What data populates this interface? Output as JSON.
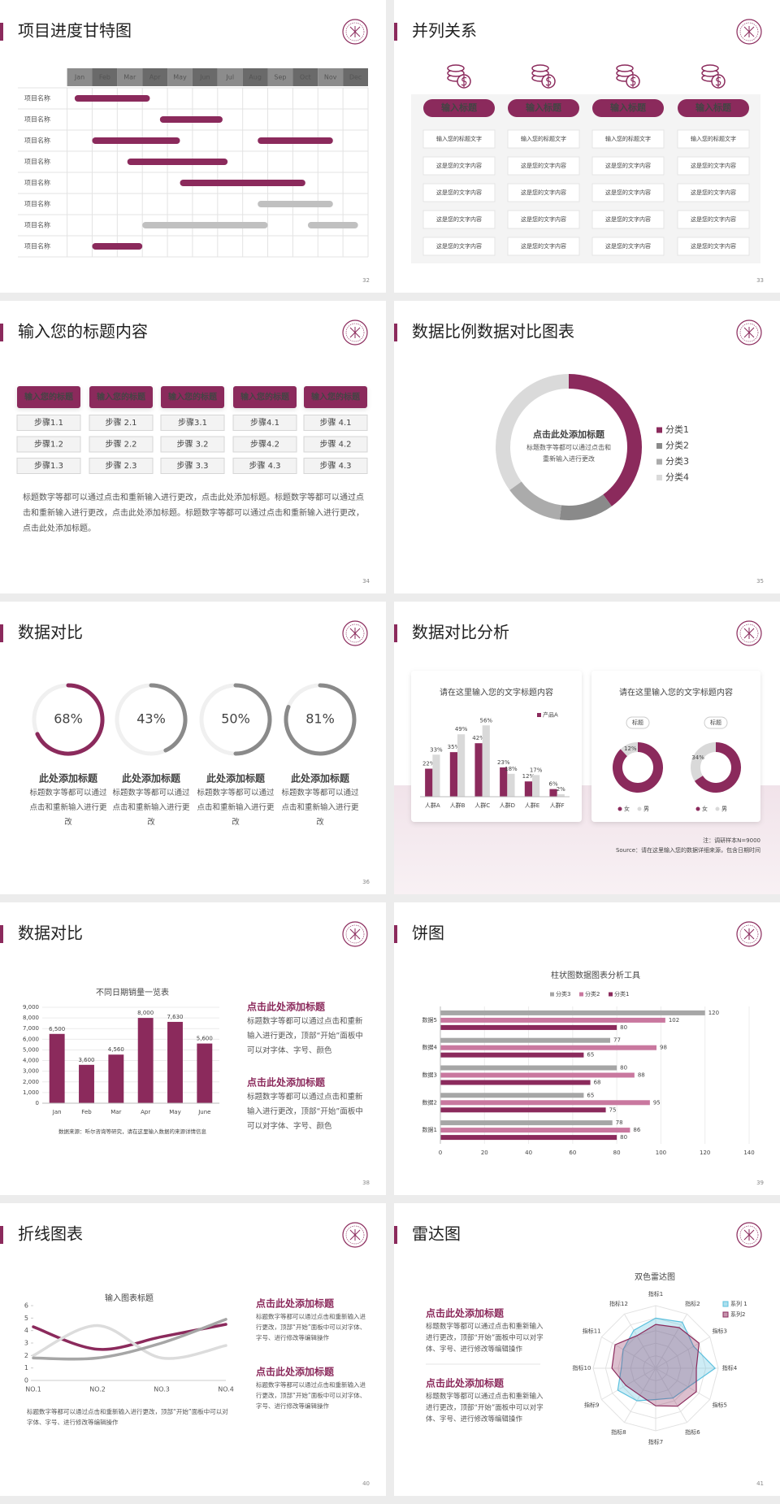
{
  "slides": [
    {
      "title": "项目进度甘特图",
      "page": "32",
      "gantt": {
        "months": [
          "Jan",
          "Feb",
          "Mar",
          "Apr",
          "May",
          "Jun",
          "Jul",
          "Aug",
          "Sep",
          "Oct",
          "Nov",
          "Dec"
        ],
        "xlim": [
          0,
          12
        ],
        "rows": [
          {
            "label": "项目名称",
            "color": "#8b2a5c",
            "bars": [
              [
                0.3,
                3.3
              ]
            ]
          },
          {
            "label": "项目名称",
            "color": "#8b2a5c",
            "bars": [
              [
                3.7,
                6.2
              ]
            ]
          },
          {
            "label": "项目名称",
            "color": "#8b2a5c",
            "bars": [
              [
                1,
                4.5
              ],
              [
                7.6,
                10.6
              ]
            ]
          },
          {
            "label": "项目名称",
            "color": "#8b2a5c",
            "bars": [
              [
                2.4,
                6.4
              ]
            ]
          },
          {
            "label": "项目名称",
            "color": "#8b2a5c",
            "bars": [
              [
                4.5,
                9.5
              ]
            ]
          },
          {
            "label": "项目名称",
            "color": "#c0c0c0",
            "bars": [
              [
                7.6,
                10.6
              ]
            ]
          },
          {
            "label": "项目名称",
            "color": "#c0c0c0",
            "bars": [
              [
                3,
                8
              ],
              [
                9.6,
                11.6
              ]
            ]
          },
          {
            "label": "项目名称",
            "color": "#8b2a5c",
            "bars": [
              [
                1,
                3
              ]
            ]
          }
        ]
      }
    },
    {
      "title": "并列关系",
      "page": "33",
      "columns": [
        {
          "header": "输入标题",
          "items": [
            "输入您的标题文字",
            "这是您的文字内容",
            "这是您的文字内容",
            "这是您的文字内容",
            "这是您的文字内容"
          ]
        },
        {
          "header": "输入标题",
          "items": [
            "输入您的标题文字",
            "这是您的文字内容",
            "这是您的文字内容",
            "这是您的文字内容",
            "这是您的文字内容"
          ]
        },
        {
          "header": "输入标题",
          "items": [
            "输入您的标题文字",
            "这是您的文字内容",
            "这是您的文字内容",
            "这是您的文字内容",
            "这是您的文字内容"
          ]
        },
        {
          "header": "输入标题",
          "items": [
            "输入您的标题文字",
            "这是您的文字内容",
            "这是您的文字内容",
            "这是您的文字内容",
            "这是您的文字内容"
          ]
        }
      ]
    },
    {
      "title": "输入您的标题内容",
      "page": "34",
      "columns": [
        {
          "header": "输入您的标题",
          "steps": [
            "步骤1.1",
            "步骤1.2",
            "步骤1.3"
          ]
        },
        {
          "header": "输入您的标题",
          "steps": [
            "步骤 2.1",
            "步骤 2.2",
            "步骤 2.3"
          ]
        },
        {
          "header": "输入您的标题",
          "steps": [
            "步骤3.1",
            "步骤 3.2",
            "步骤 3.3"
          ]
        },
        {
          "header": "输入您的标题",
          "steps": [
            "步骤4.1",
            "步骤4.2",
            "步骤 4.3"
          ]
        },
        {
          "header": "输入您的标题",
          "steps": [
            "步骤 4.1",
            "步骤 4.2",
            "步骤 4.3"
          ]
        }
      ],
      "text": "标题数字等都可以通过点击和重新输入进行更改，点击此处添加标题。标题数字等都可以通过点击和重新输入进行更改，点击此处添加标题。标题数字等都可以通过点击和重新输入进行更改，点击此处添加标题。"
    },
    {
      "title": "数据比例数据对比图表",
      "page": "35",
      "chart": {
        "type": "pie",
        "categories": [
          "分类1",
          "分类2",
          "分类3",
          "分类4"
        ],
        "values": [
          40,
          12,
          13,
          35
        ],
        "colors": [
          "#8b2a5c",
          "#8a8a8a",
          "#ababab",
          "#dadada"
        ],
        "center_title": "点击此处添加标题",
        "center_text": "标题数字等都可以通过点击和重新输入进行更改"
      }
    },
    {
      "title": "数据对比",
      "page": "36",
      "chart": {
        "type": "progress",
        "values": [
          68,
          43,
          50,
          81
        ],
        "value_labels": [
          "68%",
          "43%",
          "50%",
          "81%"
        ],
        "colors": [
          "#8b2a5c",
          "#8a8a8a",
          "#8a8a8a",
          "#8a8a8a"
        ]
      },
      "items": [
        {
          "title": "此处添加标题",
          "text": "标题数字等都可以通过点击和重新输入进行更改"
        },
        {
          "title": "此处添加标题",
          "text": "标题数字等都可以通过点击和重新输入进行更改"
        },
        {
          "title": "此处添加标题",
          "text": "标题数字等都可以通过点击和重新输入进行更改"
        },
        {
          "title": "此处添加标题",
          "text": "标题数字等都可以通过点击和重新输入进行更改"
        }
      ]
    },
    {
      "title": "数据对比分析",
      "page": "37",
      "panels": [
        {
          "title": "请在这里输入您的文字标题内容",
          "chart": {
            "type": "bar",
            "categories": [
              "人群A",
              "人群B",
              "人群C",
              "人群D",
              "人群E",
              "人群F"
            ],
            "ylim": [
              0,
              60
            ],
            "series": [
              {
                "name": "产品A",
                "color": "#8b2a5c",
                "values": [
                  22,
                  35,
                  42,
                  23,
                  12,
                  6
                ],
                "value_labels": [
                  "22%",
                  "35%",
                  "42%",
                  "23%",
                  "12%",
                  "6%"
                ]
              },
              {
                "color": "#d9d9d9",
                "values": [
                  33,
                  49,
                  56,
                  18,
                  17,
                  2
                ],
                "value_labels": [
                  "33%",
                  "49%",
                  "56%",
                  "18%",
                  "17%",
                  "2%"
                ]
              }
            ]
          }
        },
        {
          "title": "请在这里输入您的文字标题内容",
          "charts": [
            {
              "type": "pie",
              "label": "标题",
              "categories": [
                "女",
                "男"
              ],
              "values": [
                88,
                12
              ],
              "value_labels": [
                null,
                "12%"
              ],
              "colors": [
                "#8b2a5c",
                "#d9d9d9"
              ]
            },
            {
              "type": "pie",
              "label": "标题",
              "categories": [
                "女",
                "男"
              ],
              "values": [
                66,
                34
              ],
              "value_labels": [
                null,
                "34%"
              ],
              "colors": [
                "#8b2a5c",
                "#d9d9d9"
              ]
            }
          ]
        }
      ],
      "notes": [
        "注：调研样本N=9000",
        "Source：请在这里输入您的数据详细来源，包含日期时间"
      ]
    },
    {
      "title": "数据对比",
      "page": "38",
      "chart": {
        "type": "bar",
        "title": "不同日期销量一览表",
        "categories": [
          "Jan",
          "Feb",
          "Mar",
          "Apr",
          "May",
          "June"
        ],
        "values": [
          6500,
          3600,
          4560,
          8000,
          7630,
          5600
        ],
        "value_labels": [
          "6,500",
          "3,600",
          "4,560",
          "8,000",
          "7,630",
          "5,600"
        ],
        "color": "#8b2a5c",
        "ylim": [
          0,
          9000
        ],
        "yticks": [
          0,
          {
            "value": 1000,
            "label": "1,000"
          },
          {
            "value": 2000,
            "label": "2,000"
          },
          {
            "value": 3000,
            "label": "3,000"
          },
          {
            "value": 4000,
            "label": "4,000"
          },
          {
            "value": 5000,
            "label": "5,000"
          },
          {
            "value": 6000,
            "label": "6,000"
          },
          {
            "value": 7000,
            "label": "7,000"
          },
          {
            "value": 8000,
            "label": "8,000"
          },
          {
            "value": 9000,
            "label": "9,000"
          }
        ],
        "source": "数据来源：听尔咨询等研究，请在这里输入数据的来源详情信息"
      },
      "texts": [
        {
          "title": "点击此处添加标题",
          "text": "标题数字等都可以通过点击和重新输入进行更改，顶部“开始”面板中可以对字体、字号、颜色"
        },
        {
          "title": "点击此处添加标题",
          "text": "标题数字等都可以通过点击和重新输入进行更改，顶部“开始”面板中可以对字体、字号、颜色"
        }
      ]
    },
    {
      "title": "饼图",
      "page": "39",
      "chart": {
        "type": "hbar",
        "title": "柱状图数据图表分析工具",
        "categories": [
          "数据1",
          "数据2",
          "数据3",
          "数据4",
          "数据5"
        ],
        "series": [
          {
            "name": "分类1",
            "color": "#8b2a5c",
            "values": [
              80,
              75,
              68,
              65,
              80
            ]
          },
          {
            "name": "分类2",
            "color": "#c9789f",
            "values": [
              86,
              95,
              88,
              98,
              102
            ]
          },
          {
            "name": "分类3",
            "color": "#a6a6a6",
            "values": [
              78,
              65,
              80,
              77,
              120
            ]
          }
        ],
        "xlim": [
          0,
          140
        ],
        "xticks": [
          0,
          20,
          40,
          60,
          80,
          100,
          120,
          140
        ]
      }
    },
    {
      "title": "折线图表",
      "page": "40",
      "chart": {
        "type": "line",
        "title": "输入图表标题",
        "categories": [
          "NO.1",
          "NO.2",
          "NO.3",
          "NO.4"
        ],
        "series": [
          {
            "color": "#8b2a5c",
            "values": [
              4.3,
              2.5,
              3.5,
              4.5
            ]
          },
          {
            "color": "#dcdcdc",
            "values": [
              2,
              4.4,
              1.8,
              2.8
            ]
          },
          {
            "color": "#a6a6a6",
            "values": [
              1.8,
              1.8,
              3,
              4.9
            ]
          }
        ],
        "ylim": [
          0,
          6
        ],
        "yticks": [
          0,
          1,
          2,
          3,
          4,
          5,
          6
        ]
      },
      "texts": [
        {
          "title": "点击此处添加标题",
          "text": "标题数字等都可以通过点击和重新输入进行更改，顶部“开始”面板中可以对字体、字号、进行修改等编辑操作"
        },
        {
          "title": "点击此处添加标题",
          "text": "标题数字等都可以通过点击和重新输入进行更改，顶部“开始”面板中可以对字体、字号、进行修改等编辑操作"
        }
      ],
      "note": "标题数字等都可以通过点击和重新输入进行更改，顶部“开始”面板中可以对字体、字号、进行修改等编辑操作"
    },
    {
      "title": "雷达图",
      "page": "41",
      "chart": {
        "type": "radar",
        "title": "双色雷达图",
        "categories": [
          "指标1",
          "指标2",
          "指标3",
          "指标4",
          "指标5",
          "指标6",
          "指标7",
          "指标8",
          "指标9",
          "指标10",
          "指标11",
          "指标12"
        ],
        "rlim": [
          0,
          100
        ],
        "series": [
          {
            "name": "系列 1",
            "color": "#5bc0de",
            "values": [
              80,
              85,
              70,
              95,
              60,
              55,
              50,
              60,
              70,
              55,
              60,
              70
            ]
          },
          {
            "name": "系列2",
            "color": "#8b2a5c",
            "values": [
              70,
              75,
              80,
              65,
              75,
              70,
              60,
              50,
              55,
              70,
              75,
              60
            ]
          }
        ]
      },
      "texts": [
        {
          "title": "点击此处添加标题",
          "text": "标题数字等都可以通过点击和重新输入进行更改，顶部“开始”面板中可以对字体、字号、进行修改等编辑操作"
        },
        {
          "title": "点击此处添加标题",
          "text": "标题数字等都可以通过点击和重新输入进行更改，顶部“开始”面板中可以对字体、字号、进行修改等编辑操作"
        }
      ]
    }
  ]
}
